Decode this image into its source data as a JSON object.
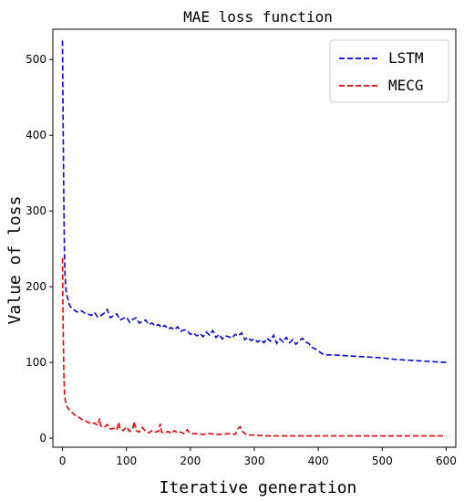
{
  "chart_data": {
    "type": "line",
    "title": "MAE loss function",
    "xlabel": "Iterative generation",
    "ylabel": "Value of loss",
    "xlim": [
      -15,
      615
    ],
    "ylim": [
      -12,
      540
    ],
    "xticks": [
      0,
      100,
      200,
      300,
      400,
      500,
      600
    ],
    "yticks": [
      0,
      100,
      200,
      300,
      400,
      500
    ],
    "grid": false,
    "legend_position": "top-right",
    "series": [
      {
        "name": "LSTM",
        "color": "#0000ee",
        "line_style": "dashed",
        "x": [
          0,
          1,
          2,
          3,
          4,
          5,
          6,
          8,
          10,
          12,
          15,
          20,
          25,
          30,
          35,
          40,
          45,
          50,
          55,
          60,
          65,
          70,
          75,
          80,
          85,
          90,
          95,
          100,
          105,
          110,
          115,
          120,
          125,
          130,
          135,
          140,
          145,
          150,
          155,
          160,
          165,
          170,
          175,
          180,
          185,
          190,
          195,
          200,
          205,
          210,
          215,
          220,
          225,
          230,
          235,
          240,
          245,
          250,
          255,
          260,
          265,
          270,
          275,
          280,
          285,
          290,
          295,
          300,
          305,
          310,
          315,
          320,
          325,
          330,
          335,
          340,
          345,
          350,
          355,
          360,
          365,
          370,
          375,
          380,
          385,
          390,
          395,
          400,
          405,
          410,
          420,
          440,
          460,
          480,
          500,
          520,
          540,
          560,
          580,
          600
        ],
        "y": [
          525,
          420,
          320,
          250,
          215,
          200,
          192,
          185,
          178,
          174,
          172,
          168,
          166,
          168,
          165,
          164,
          162,
          166,
          160,
          162,
          165,
          170,
          159,
          162,
          164,
          156,
          158,
          160,
          153,
          157,
          159,
          152,
          154,
          156,
          150,
          152,
          148,
          150,
          146,
          149,
          144,
          146,
          143,
          147,
          141,
          143,
          142,
          137,
          139,
          135,
          138,
          134,
          140,
          136,
          142,
          133,
          137,
          131,
          135,
          134,
          132,
          137,
          135,
          139,
          130,
          133,
          129,
          131,
          127,
          130,
          126,
          132,
          128,
          136,
          125,
          131,
          127,
          133,
          126,
          130,
          124,
          128,
          132,
          127,
          125,
          120,
          118,
          115,
          112,
          110,
          110,
          109,
          108,
          107,
          106,
          104,
          103,
          102,
          101,
          100
        ]
      },
      {
        "name": "MECG",
        "color": "#ee0000",
        "line_style": "dashed",
        "x": [
          0,
          1,
          2,
          3,
          4,
          5,
          7,
          10,
          15,
          20,
          25,
          30,
          35,
          40,
          45,
          50,
          55,
          58,
          60,
          65,
          70,
          75,
          80,
          85,
          88,
          90,
          95,
          100,
          105,
          110,
          112,
          115,
          120,
          125,
          130,
          135,
          140,
          145,
          150,
          153,
          155,
          160,
          165,
          170,
          175,
          180,
          185,
          190,
          195,
          200,
          210,
          220,
          230,
          240,
          250,
          260,
          270,
          275,
          278,
          280,
          285,
          290,
          300,
          320,
          350,
          400,
          450,
          500,
          550,
          600
        ],
        "y": [
          238,
          150,
          90,
          62,
          52,
          48,
          42,
          38,
          34,
          30,
          28,
          25,
          23,
          21,
          19,
          20,
          17,
          26,
          16,
          14,
          18,
          12,
          13,
          11,
          21,
          12,
          10,
          15,
          9,
          12,
          22,
          10,
          8,
          14,
          9,
          7,
          10,
          8,
          9,
          19,
          8,
          7,
          9,
          6,
          10,
          7,
          8,
          6,
          11,
          6,
          6,
          5,
          6,
          5,
          5,
          6,
          5,
          13,
          15,
          10,
          6,
          4,
          4,
          3,
          3,
          3,
          3,
          3,
          3,
          3
        ]
      }
    ]
  }
}
